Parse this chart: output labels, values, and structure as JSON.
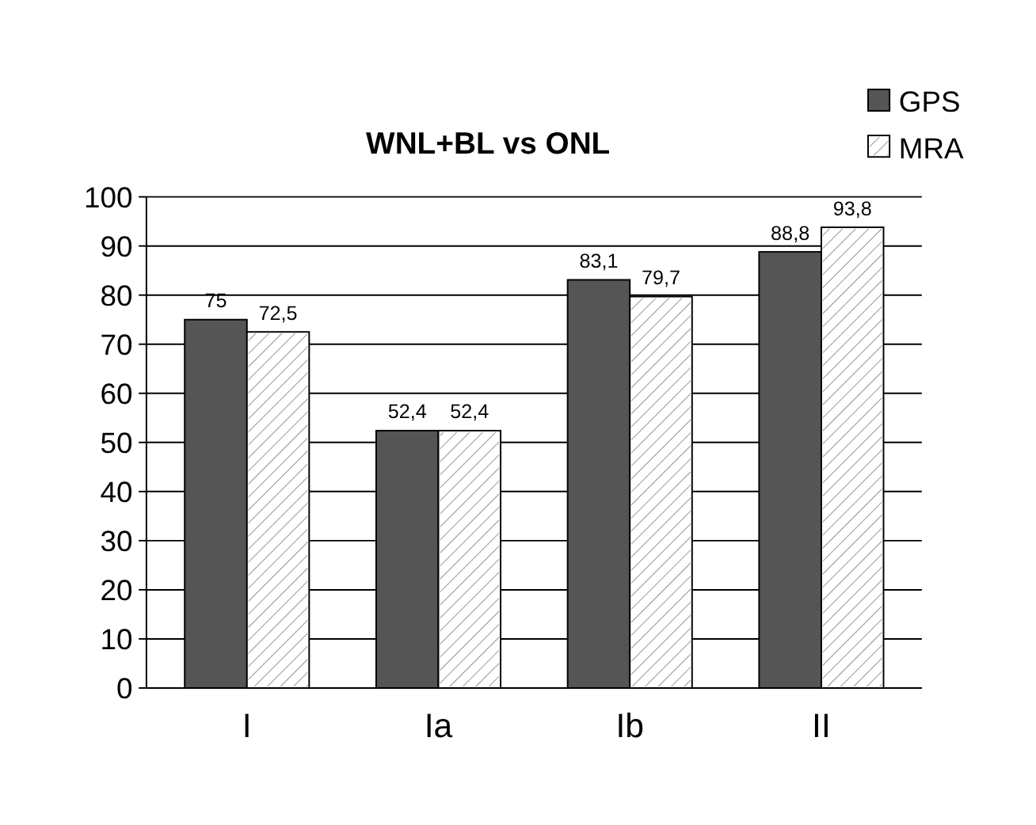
{
  "chart_data": {
    "type": "bar",
    "title": "WNL+BL vs ONL",
    "categories": [
      "I",
      "Ia",
      "Ib",
      "II"
    ],
    "series": [
      {
        "name": "GPS",
        "color": "#555555",
        "values": [
          75,
          52.4,
          83.1,
          88.8
        ],
        "value_labels": [
          "75",
          "52,4",
          "83,1",
          "88,8"
        ]
      },
      {
        "name": "MRA",
        "color": "#ffffff",
        "values": [
          72.5,
          52.4,
          79.7,
          93.8
        ],
        "value_labels": [
          "72,5",
          "52,4",
          "79,7",
          "93,8"
        ]
      }
    ],
    "ylim": [
      0,
      100
    ],
    "yticks": [
      0,
      10,
      20,
      30,
      40,
      50,
      60,
      70,
      80,
      90,
      100
    ],
    "grid": "y",
    "legend": "top right"
  }
}
